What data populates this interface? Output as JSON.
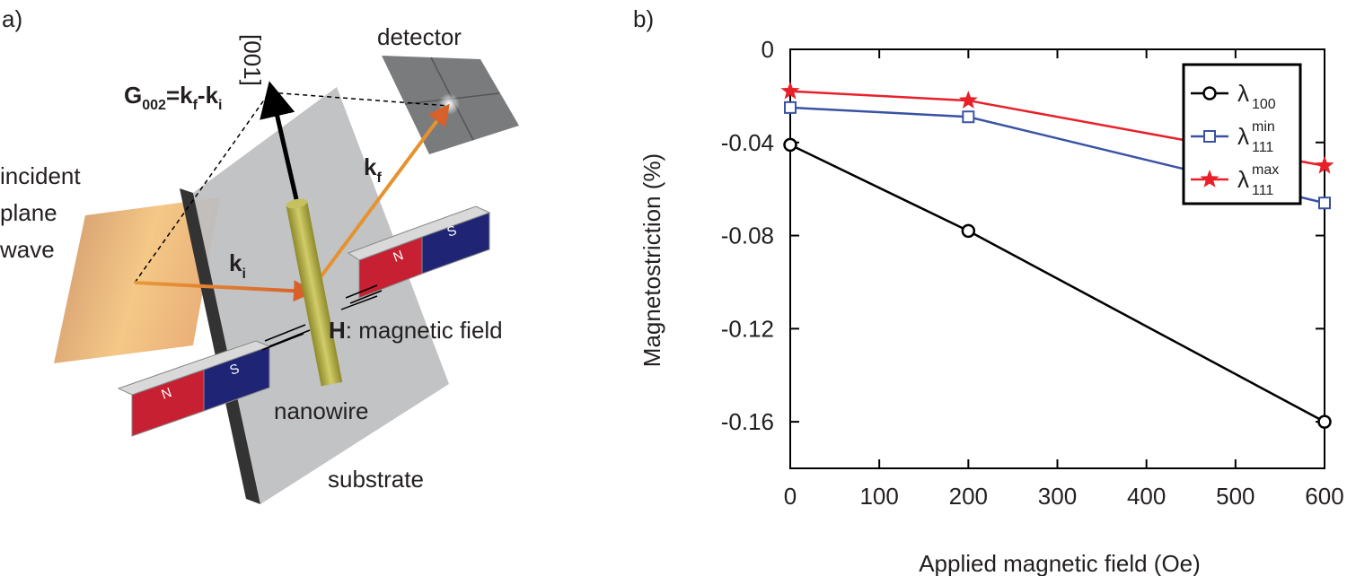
{
  "panel_labels": [
    "a)",
    "b)"
  ],
  "diagram": {
    "axis_label": "[001]",
    "detector": "detector",
    "formula": [
      "G",
      "002",
      "=k",
      "f",
      "-k",
      "i"
    ],
    "kf": [
      "k",
      "f"
    ],
    "ki": [
      "k",
      "i"
    ],
    "incident": [
      "incident",
      "plane",
      "wave"
    ],
    "field": [
      "H",
      ": magnetic field"
    ],
    "nanowire": "nanowire",
    "substrate": "substrate",
    "magnets": [
      {
        "n": "N",
        "s": "S"
      },
      {
        "n": "N",
        "s": "S"
      }
    ]
  },
  "chart_data": {
    "type": "line",
    "x_label": "Applied magnetic field (Oe)",
    "y_label": "Magnetostriction (%)",
    "x": [
      0,
      200,
      600
    ],
    "xlim": [
      0,
      600
    ],
    "xticks": [
      0,
      100,
      200,
      300,
      400,
      500,
      600
    ],
    "ylim": [
      -0.18,
      0
    ],
    "yticks": [
      0,
      -0.04,
      -0.08,
      -0.12,
      -0.16
    ],
    "legend": "upper right",
    "series": [
      {
        "name": "λ",
        "sub": "100",
        "color": "#000000",
        "marker": "circle",
        "values": [
          -0.041,
          -0.078,
          -0.16
        ]
      },
      {
        "name": "λ",
        "sub": "111",
        "sup": "min",
        "color": "#3953a4",
        "marker": "square",
        "values": [
          -0.025,
          -0.029,
          -0.066
        ]
      },
      {
        "name": "λ",
        "sub": "111",
        "sup": "max",
        "color": "#e8202a",
        "marker": "star",
        "values": [
          -0.018,
          -0.022,
          -0.05
        ]
      }
    ]
  }
}
